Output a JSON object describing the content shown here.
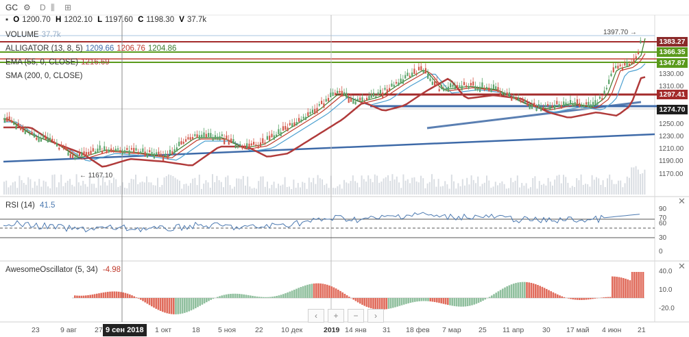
{
  "toolbar": {
    "symbol": "GC",
    "interval": "D"
  },
  "ohlc": {
    "o_label": "O",
    "o_value": "1200.70",
    "h_label": "H",
    "h_value": "1202.10",
    "l_label": "L",
    "l_value": "1197.60",
    "c_label": "C",
    "c_value": "1198.30",
    "v_label": "V",
    "v_value": "37.7k"
  },
  "legend": {
    "volume_label": "VOLUME",
    "volume_value": "37.7k",
    "alligator_label": "ALLIGATOR (13, 8, 5)",
    "alligator_jaw": "1209.66",
    "alligator_teeth": "1206.76",
    "alligator_lips": "1204.86",
    "ema_label": "EMA (55, 0, CLOSE)",
    "ema_value": "1216.69",
    "sma_label": "SMA (200, 0, CLOSE)"
  },
  "price_axis": {
    "tags": [
      {
        "text": "1383.27",
        "color": "#8b2a2a"
      },
      {
        "text": "1366.35",
        "color": "#5a9a1c"
      },
      {
        "text": "1347.87",
        "color": "#5a9a1c"
      },
      {
        "text": "1297.41",
        "color": "#a32a2a"
      },
      {
        "text": "1274.70",
        "color": "#1e1e1e"
      }
    ],
    "labels": [
      "1330.00",
      "1310.00",
      "1250.00",
      "1230.00",
      "1210.00",
      "1190.00",
      "1170.00"
    ],
    "high_annotation": "1397.70 →",
    "low_annotation": "← 1167.10"
  },
  "rsi": {
    "title": "RSI (14)",
    "value": "41.5",
    "levels": [
      "90",
      "70",
      "60",
      "30",
      "0"
    ]
  },
  "ao": {
    "title": "AwesomeOscillator (5, 34)",
    "value": "-4.98",
    "levels": [
      "40.0",
      "10.0",
      "-20.0"
    ]
  },
  "time_axis": {
    "labels": [
      "23",
      "9 авг",
      "27",
      "1 окт",
      "18",
      "5 ноя",
      "22",
      "10 дек",
      "2019",
      "14 янв",
      "31",
      "18 фев",
      "7 мар",
      "25",
      "11 апр",
      "30",
      "17 май",
      "4 июн",
      "21"
    ],
    "crosshair_date": "9 сен 2018"
  },
  "nav": {
    "prev": "‹",
    "zoom_in": "+",
    "zoom_out": "−",
    "next": "›"
  },
  "colors": {
    "up": "#5aa46a",
    "down": "#d2574a",
    "trendline": "#3e6aa8",
    "sr_red": "#a32a2a",
    "sr_green": "#5a9a1c",
    "ema": "#b03a3a",
    "sma": "#3e6aa8",
    "rsi": "#4a78b0"
  }
}
